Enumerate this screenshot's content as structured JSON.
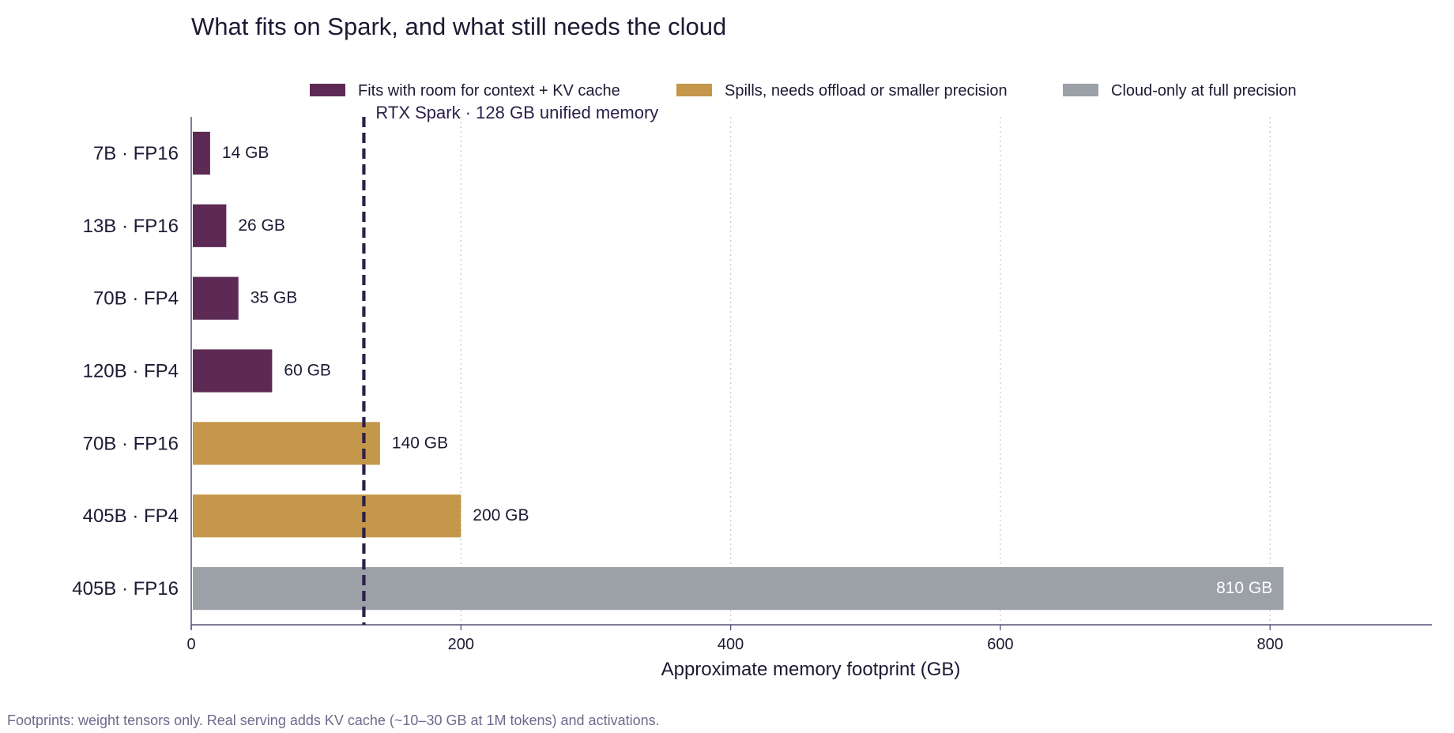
{
  "chart_data": {
    "type": "bar",
    "orientation": "horizontal",
    "title": "What fits on Spark, and what still needs the cloud",
    "xlabel": "Approximate memory footprint (GB)",
    "ylabel": "",
    "xlim": [
      0,
      920
    ],
    "xticks": [
      0,
      200,
      400,
      600,
      800
    ],
    "grid": "vertical dotted",
    "legend_position": "top",
    "legend": [
      {
        "key": "fits",
        "label": "Fits with room for context + KV cache",
        "color": "#5c2a55"
      },
      {
        "key": "spills",
        "label": "Spills, needs offload or smaller precision",
        "color": "#c4974a"
      },
      {
        "key": "cloud",
        "label": "Cloud-only at full precision",
        "color": "#9ca0a7"
      }
    ],
    "categories": [
      "7B · FP16",
      "13B · FP16",
      "70B · FP4",
      "120B · FP4",
      "70B · FP16",
      "405B · FP4",
      "405B · FP16"
    ],
    "values": [
      14,
      26,
      35,
      60,
      140,
      200,
      810
    ],
    "value_labels": [
      "14 GB",
      "26 GB",
      "35 GB",
      "60 GB",
      "140 GB",
      "200 GB",
      "810 GB"
    ],
    "groups": [
      "fits",
      "fits",
      "fits",
      "fits",
      "spills",
      "spills",
      "cloud"
    ],
    "reference_line": {
      "value": 128,
      "label": "RTX Spark · 128 GB unified memory",
      "color": "#2c1f4a"
    },
    "footnote": "Footprints: weight tensors only. Real serving adds KV cache (~10–30 GB at 1M tokens) and activations."
  }
}
